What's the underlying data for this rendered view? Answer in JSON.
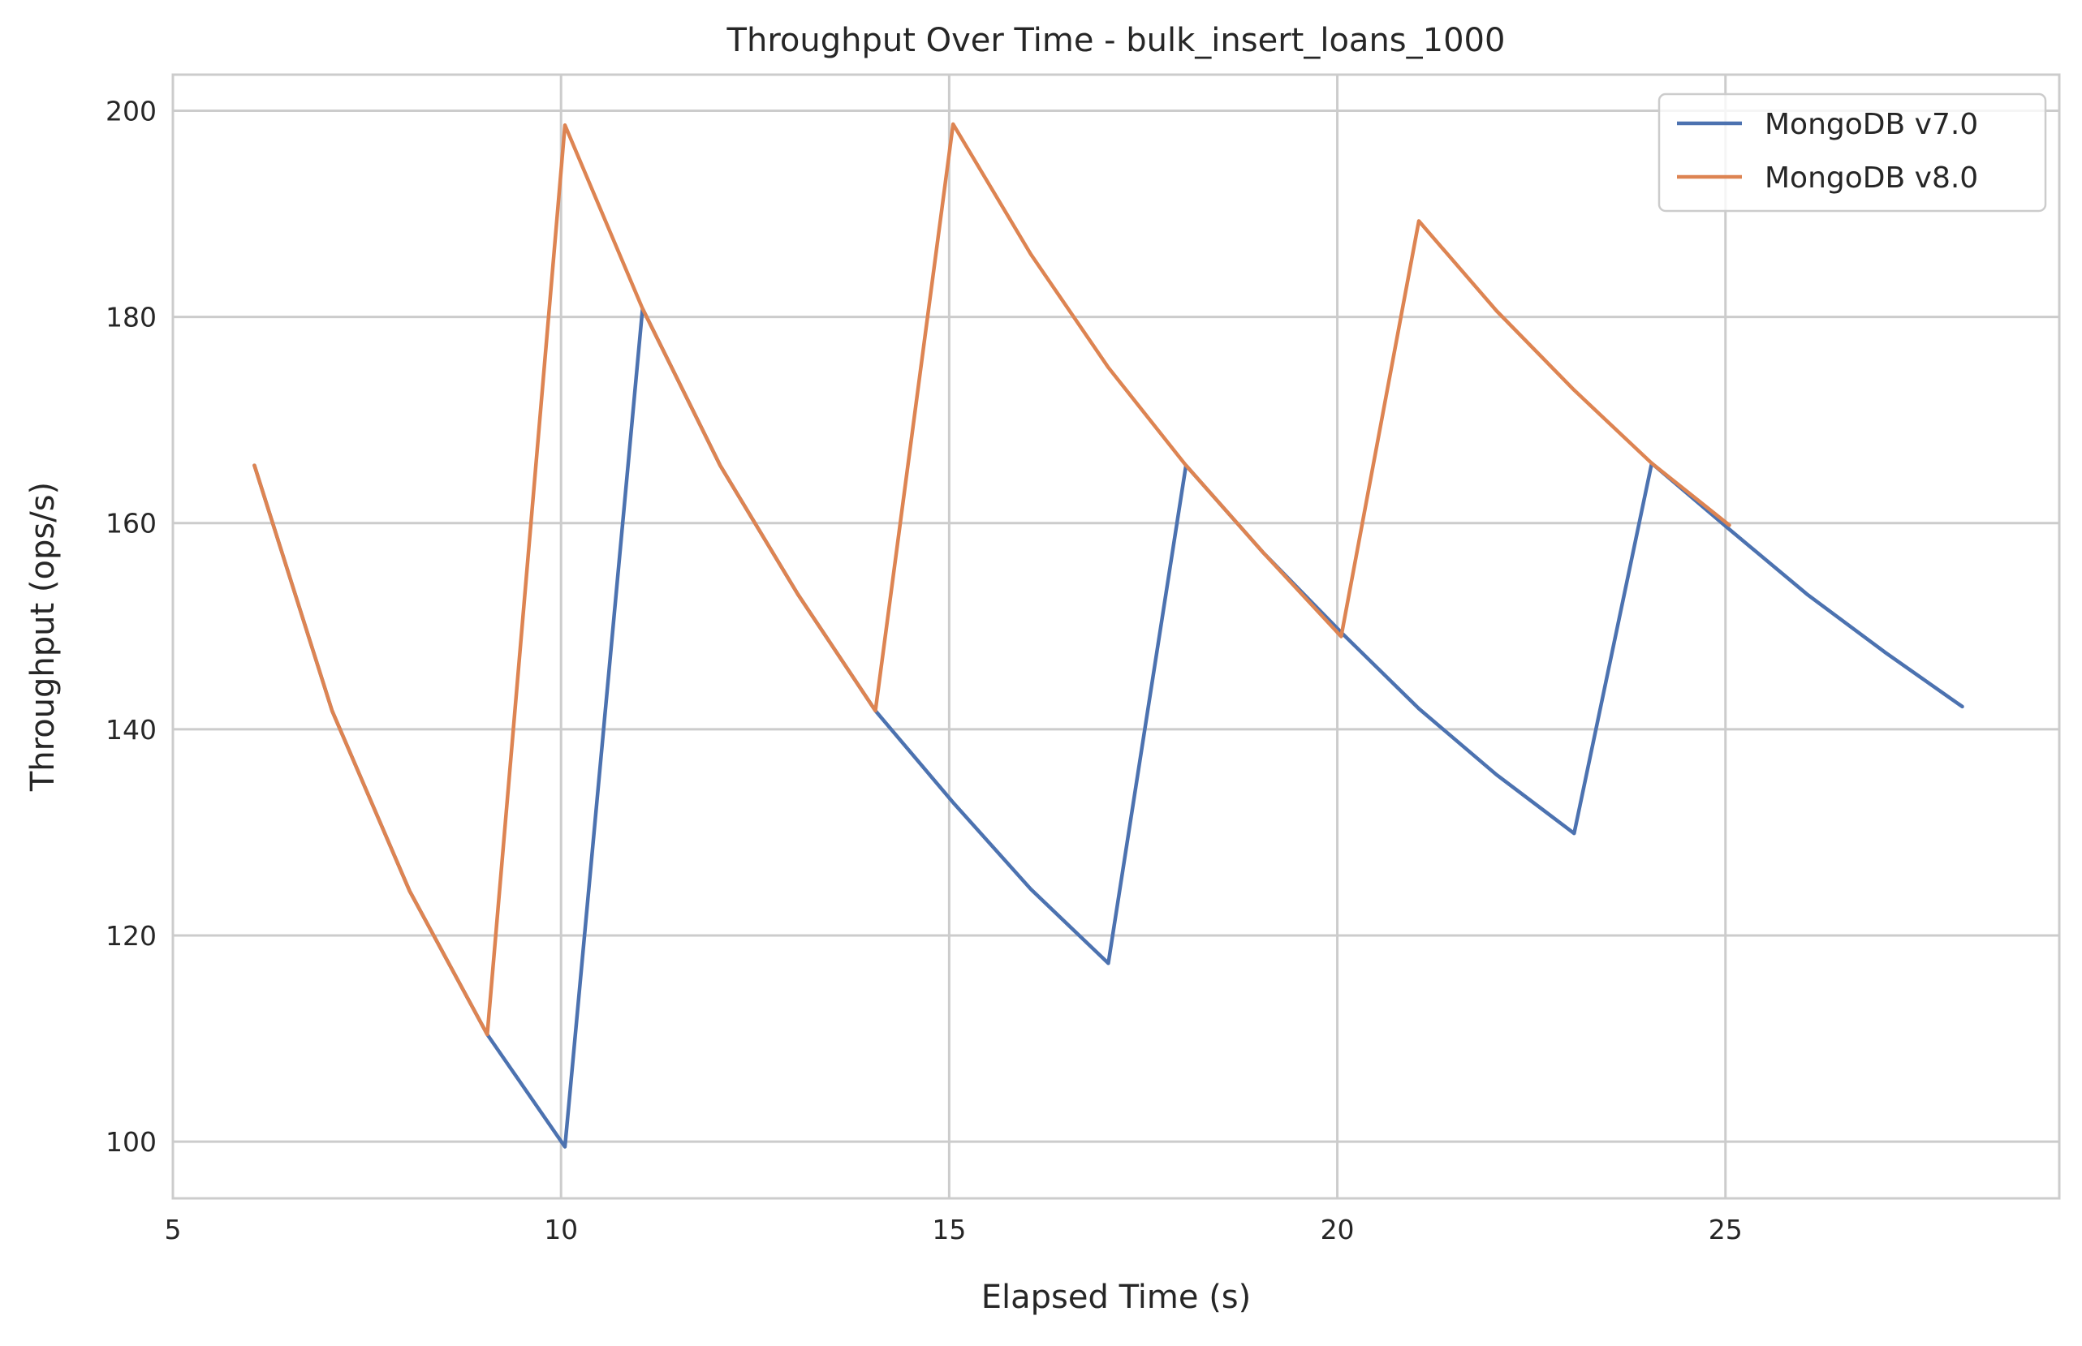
{
  "chart_data": {
    "type": "line",
    "title": "Throughput Over Time - bulk_insert_loans_1000",
    "xlabel": "Elapsed Time (s)",
    "ylabel": "Throughput (ops/s)",
    "xlim": [
      5,
      29.3
    ],
    "ylim": [
      94.5,
      203.5
    ],
    "xticks": [
      5,
      10,
      15,
      20,
      25
    ],
    "yticks": [
      100,
      120,
      140,
      160,
      180,
      200
    ],
    "grid": true,
    "legend_position": "top-right",
    "series": [
      {
        "name": "MongoDB v7.0",
        "color": "#4c72b0",
        "x": [
          6.05,
          7.05,
          8.05,
          9.05,
          10.05,
          11.05,
          12.05,
          13.05,
          14.05,
          15.05,
          16.05,
          17.05,
          18.05,
          19.05,
          20.05,
          21.05,
          22.05,
          23.05,
          24.05,
          25.05,
          26.05,
          27.05,
          28.05
        ],
        "y": [
          165.6,
          141.8,
          124.3,
          110.4,
          99.5,
          180.8,
          165.6,
          153.1,
          141.8,
          132.9,
          124.5,
          117.3,
          165.6,
          157.1,
          149.4,
          142.0,
          135.6,
          129.9,
          165.8,
          159.4,
          153.1,
          147.5,
          142.2
        ]
      },
      {
        "name": "MongoDB v8.0",
        "color": "#dd8452",
        "x": [
          6.05,
          7.05,
          8.05,
          9.05,
          10.05,
          11.05,
          12.05,
          13.05,
          14.05,
          15.05,
          16.05,
          17.05,
          18.05,
          19.05,
          20.05,
          21.05,
          22.05,
          23.05,
          24.05,
          25.05
        ],
        "y": [
          165.6,
          141.8,
          124.3,
          110.4,
          198.6,
          180.8,
          165.6,
          153.1,
          141.8,
          198.7,
          186.1,
          175.1,
          165.6,
          157.1,
          149.0,
          189.3,
          180.6,
          172.9,
          165.8,
          159.8
        ]
      }
    ]
  }
}
